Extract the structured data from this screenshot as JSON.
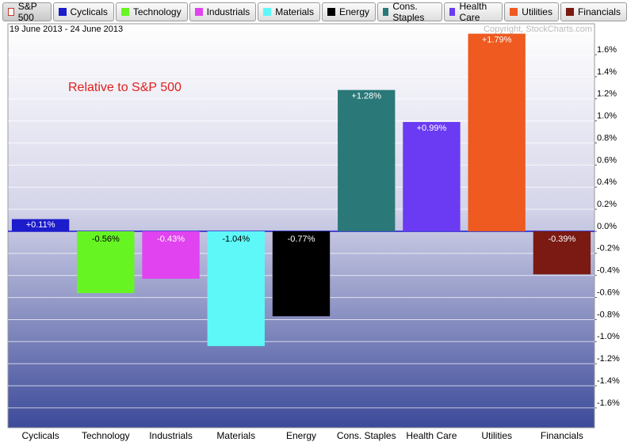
{
  "chart_data": {
    "type": "bar",
    "subtitle": "19 June 2013 - 24 June 2013",
    "copyright": "Copyright, StockCharts.com",
    "annotation": "Relative to S&P 500",
    "benchmark": "S&P 500",
    "categories": [
      "Cyclicals",
      "Technology",
      "Industrials",
      "Materials",
      "Energy",
      "Cons. Staples",
      "Health Care",
      "Utilities",
      "Financials"
    ],
    "values": [
      0.11,
      -0.56,
      -0.43,
      -1.04,
      -0.77,
      1.28,
      0.99,
      1.79,
      -0.39
    ],
    "value_labels": [
      "+0.11%",
      "-0.56%",
      "-0.43%",
      "-1.04%",
      "-0.77%",
      "+1.28%",
      "+0.99%",
      "+1.79%",
      "-0.39%"
    ],
    "colors": [
      "#1c1ccc",
      "#66f522",
      "#e043ef",
      "#5ef8f8",
      "#000000",
      "#2b7878",
      "#6a3bf2",
      "#ee5a1f",
      "#7a1a12"
    ],
    "ylim": [
      -1.78,
      1.88
    ],
    "yticks": [
      {
        "value": 1.6,
        "label": "1.6%"
      },
      {
        "value": 1.4,
        "label": "1.4%"
      },
      {
        "value": 1.2,
        "label": "1.2%"
      },
      {
        "value": 1.0,
        "label": "1.0%"
      },
      {
        "value": 0.8,
        "label": "0.8%"
      },
      {
        "value": 0.6,
        "label": "0.6%"
      },
      {
        "value": 0.4,
        "label": "0.4%"
      },
      {
        "value": 0.2,
        "label": "0.2%"
      },
      {
        "value": 0,
        "label": "0.0%"
      },
      {
        "value": -0.2,
        "label": "-0.2%"
      },
      {
        "value": -0.4,
        "label": "-0.4%"
      },
      {
        "value": -0.6,
        "label": "-0.6%"
      },
      {
        "value": -0.8,
        "label": "-0.8%"
      },
      {
        "value": -1.0,
        "label": "-1.0%"
      },
      {
        "value": -1.2,
        "label": "-1.2%"
      },
      {
        "value": -1.4,
        "label": "-1.4%"
      },
      {
        "value": -1.6,
        "label": "-1.6%"
      }
    ],
    "grid": true
  }
}
